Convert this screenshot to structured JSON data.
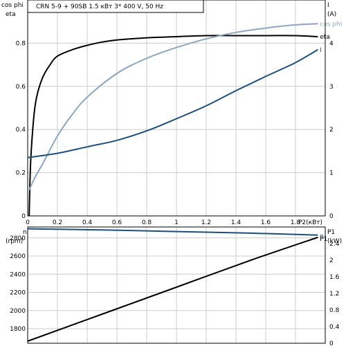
{
  "title": "CRN 5-9 + 90SB    1.5 кВт   3* 400 V, 50 Hz",
  "colors": {
    "black": "#000000",
    "cos_phi": "#8aa6c1",
    "current": "#1a4f7d",
    "grid": "#cccccc"
  },
  "chart_data": [
    {
      "type": "line",
      "title": "CRN 5-9 + 90SB    1.5 кВт   3* 400 V, 50 Hz",
      "left_axis_labels": [
        "cos phi",
        "eta"
      ],
      "right_axis_labels": [
        "I",
        "(A)"
      ],
      "xlabel": "P2(кВт)",
      "xlim": [
        0,
        2.0
      ],
      "x_ticks": [
        "0",
        "0.2",
        "0.4",
        "0.6",
        "0.8",
        "1",
        "1.2",
        "1.4",
        "1.6",
        "1.8"
      ],
      "ylim_left": [
        0,
        1.0
      ],
      "y_ticks_left": [
        "0",
        "0.2",
        "0.4",
        "0.6",
        "0.8"
      ],
      "ylim_right": [
        0,
        5
      ],
      "y_ticks_right": [
        "0",
        "1",
        "2",
        "3",
        "4"
      ],
      "grid": true,
      "series": [
        {
          "name": "eta",
          "axis": "left",
          "color": "#000000",
          "x": [
            0.01,
            0.02,
            0.04,
            0.06,
            0.1,
            0.15,
            0.2,
            0.3,
            0.4,
            0.5,
            0.6,
            0.8,
            1.0,
            1.2,
            1.4,
            1.6,
            1.8,
            1.95
          ],
          "y": [
            0.0,
            0.25,
            0.45,
            0.55,
            0.64,
            0.7,
            0.74,
            0.77,
            0.79,
            0.805,
            0.815,
            0.825,
            0.83,
            0.835,
            0.835,
            0.835,
            0.835,
            0.83
          ]
        },
        {
          "name": "cos phi",
          "axis": "left",
          "color": "#8aa6c1",
          "x": [
            0.01,
            0.05,
            0.1,
            0.2,
            0.3,
            0.4,
            0.6,
            0.8,
            1.0,
            1.2,
            1.4,
            1.6,
            1.8,
            1.95
          ],
          "y": [
            0.12,
            0.18,
            0.24,
            0.37,
            0.47,
            0.55,
            0.66,
            0.73,
            0.78,
            0.82,
            0.85,
            0.87,
            0.885,
            0.89
          ]
        },
        {
          "name": "I",
          "axis": "right",
          "color": "#1a4f7d",
          "x": [
            0.0,
            0.2,
            0.4,
            0.6,
            0.8,
            1.0,
            1.2,
            1.4,
            1.6,
            1.8,
            1.95
          ],
          "y": [
            1.35,
            1.45,
            1.6,
            1.75,
            1.97,
            2.25,
            2.55,
            2.9,
            3.23,
            3.55,
            3.85
          ]
        }
      ]
    },
    {
      "type": "line",
      "left_axis_labels": [
        "n",
        "(rpm)"
      ],
      "right_axis_labels": [
        "P1",
        "(kW)"
      ],
      "xlim": [
        0,
        2.0
      ],
      "ylim_left": [
        1640,
        2920
      ],
      "y_ticks_left": [
        "1800",
        "2000",
        "2200",
        "2400",
        "2600",
        "2800"
      ],
      "ylim_right": [
        0,
        2.8
      ],
      "y_ticks_right": [
        "0",
        "0.4",
        "0.8",
        "1.2",
        "1.6",
        "2",
        "2.4"
      ],
      "grid": true,
      "series": [
        {
          "name": "n",
          "axis": "left",
          "color": "#1a4f7d",
          "x": [
            0.0,
            0.5,
            1.0,
            1.5,
            1.95
          ],
          "y": [
            2900,
            2887,
            2870,
            2852,
            2830
          ]
        },
        {
          "name": "P1",
          "axis": "right",
          "color": "#000000",
          "x": [
            0.0,
            0.5,
            1.0,
            1.5,
            1.95
          ],
          "y": [
            0.05,
            0.7,
            1.35,
            2.0,
            2.55
          ]
        }
      ]
    }
  ]
}
